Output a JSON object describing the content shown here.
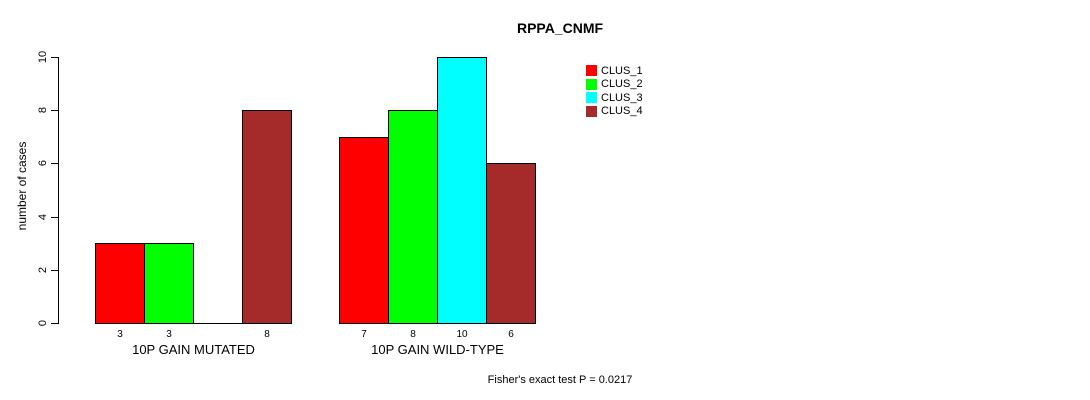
{
  "chart_data": {
    "type": "bar",
    "title": "RPPA_CNMF",
    "ylabel": "number of cases",
    "xlabel": "",
    "ylim": [
      0,
      10
    ],
    "yticks": [
      0,
      2,
      4,
      6,
      8,
      10
    ],
    "grid": false,
    "legend_position": "top-right",
    "categories": [
      "10P GAIN MUTATED",
      "10P GAIN WILD-TYPE"
    ],
    "series": [
      {
        "name": "CLUS_1",
        "color": "#ff0000",
        "values": [
          3,
          7
        ]
      },
      {
        "name": "CLUS_2",
        "color": "#00ff00",
        "values": [
          3,
          8
        ]
      },
      {
        "name": "CLUS_3",
        "color": "#00ffff",
        "values": [
          0,
          10
        ]
      },
      {
        "name": "CLUS_4",
        "color": "#a52a2a",
        "values": [
          8,
          6
        ]
      }
    ],
    "bar_value_labels": [
      "3",
      "3",
      "",
      "8",
      "7",
      "8",
      "10",
      "6"
    ],
    "annotation": "Fisher's exact test P = 0.0217"
  }
}
